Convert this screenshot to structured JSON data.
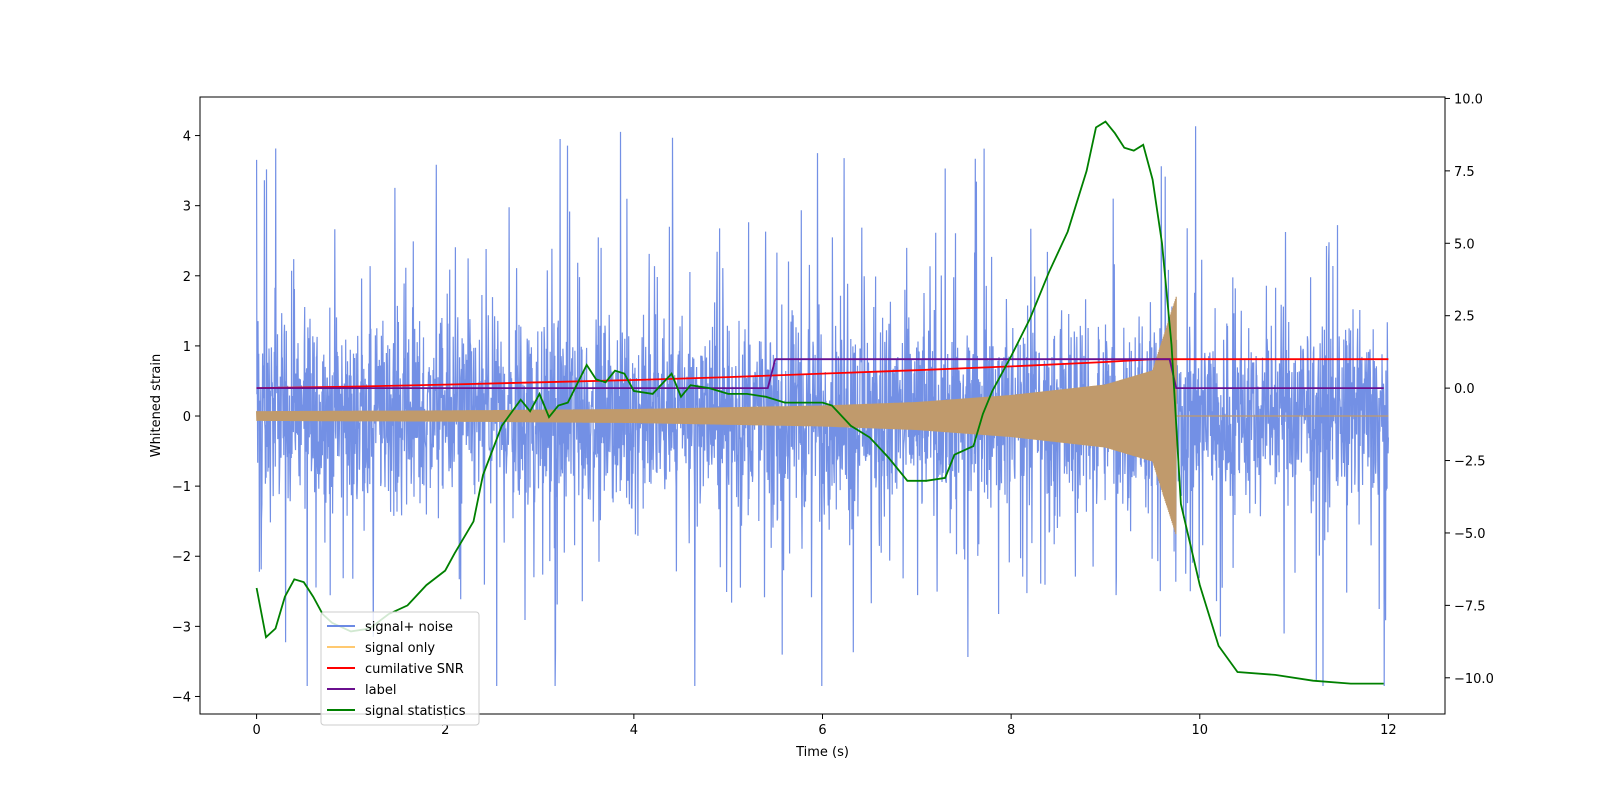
{
  "chart_data": {
    "type": "line",
    "title": "",
    "xlabel": "Time (s)",
    "ylabel": "Whitened strain",
    "y2label": "",
    "xlim": [
      -0.6,
      12.6
    ],
    "ylim": [
      -4.25,
      4.55
    ],
    "y2lim": [
      -11.25,
      10.05
    ],
    "x_ticks": [
      0,
      2,
      4,
      6,
      8,
      10,
      12
    ],
    "y_ticks": [
      -4,
      -3,
      -2,
      -1,
      0,
      1,
      2,
      3,
      4
    ],
    "y2_ticks": [
      -10.0,
      -7.5,
      -5.0,
      -2.5,
      0.0,
      2.5,
      5.0,
      7.5,
      10.0
    ],
    "grid": false,
    "legend_position": "lower-left",
    "legend": [
      {
        "label": "signal+ noise",
        "color": "#6c8ae4"
      },
      {
        "label": "signal only",
        "color": "#ffc970"
      },
      {
        "label": "cumilative SNR",
        "color": "#ff0000"
      },
      {
        "label": "label",
        "color": "#6a0f8e"
      },
      {
        "label": "signal statistics",
        "color": "#008000"
      }
    ],
    "series": [
      {
        "name": "signal+ noise",
        "axis": "left",
        "color": "#6c8ae4",
        "style": "noise",
        "x_range": [
          0,
          12
        ],
        "typical_peak": 2.3,
        "max_peak": 4.15,
        "min_peak": -3.85
      },
      {
        "name": "signal only",
        "axis": "left",
        "color": "#c09a6c",
        "style": "chirp",
        "x_range": [
          0,
          12
        ],
        "end_time": 9.75,
        "envelope": [
          [
            0,
            0.07
          ],
          [
            2,
            0.08
          ],
          [
            4,
            0.1
          ],
          [
            6,
            0.15
          ],
          [
            7,
            0.2
          ],
          [
            8,
            0.3
          ],
          [
            9,
            0.45
          ],
          [
            9.5,
            0.65
          ],
          [
            9.75,
            1.7
          ]
        ],
        "after_value": 0.0
      },
      {
        "name": "cumilative SNR",
        "axis": "right",
        "color": "#ff0000",
        "points": [
          [
            0,
            0.0
          ],
          [
            1,
            0.05
          ],
          [
            2,
            0.12
          ],
          [
            3,
            0.2
          ],
          [
            4,
            0.28
          ],
          [
            5,
            0.38
          ],
          [
            6,
            0.5
          ],
          [
            7,
            0.62
          ],
          [
            8,
            0.75
          ],
          [
            9,
            0.9
          ],
          [
            9.5,
            1.0
          ],
          [
            9.75,
            1.0
          ],
          [
            12,
            1.0
          ]
        ]
      },
      {
        "name": "label",
        "axis": "right",
        "color": "#6a0f8e",
        "points": [
          [
            0,
            0.0
          ],
          [
            5.42,
            0.0
          ],
          [
            5.5,
            1.0
          ],
          [
            9.68,
            1.0
          ],
          [
            9.75,
            0.0
          ],
          [
            11.95,
            0.0
          ]
        ]
      },
      {
        "name": "signal statistics",
        "axis": "right",
        "color": "#008000",
        "points": [
          [
            0,
            -6.9
          ],
          [
            0.1,
            -8.6
          ],
          [
            0.2,
            -8.3
          ],
          [
            0.3,
            -7.2
          ],
          [
            0.4,
            -6.6
          ],
          [
            0.5,
            -6.7
          ],
          [
            0.6,
            -7.2
          ],
          [
            0.7,
            -7.8
          ],
          [
            0.8,
            -8.1
          ],
          [
            1.0,
            -8.4
          ],
          [
            1.2,
            -8.3
          ],
          [
            1.4,
            -7.8
          ],
          [
            1.6,
            -7.5
          ],
          [
            1.8,
            -6.8
          ],
          [
            2.0,
            -6.3
          ],
          [
            2.1,
            -5.7
          ],
          [
            2.3,
            -4.6
          ],
          [
            2.4,
            -3.0
          ],
          [
            2.6,
            -1.3
          ],
          [
            2.8,
            -0.4
          ],
          [
            2.9,
            -0.8
          ],
          [
            3.0,
            -0.2
          ],
          [
            3.1,
            -1.0
          ],
          [
            3.2,
            -0.6
          ],
          [
            3.3,
            -0.5
          ],
          [
            3.5,
            0.8
          ],
          [
            3.6,
            0.3
          ],
          [
            3.7,
            0.2
          ],
          [
            3.8,
            0.6
          ],
          [
            3.9,
            0.5
          ],
          [
            4.0,
            -0.1
          ],
          [
            4.2,
            -0.2
          ],
          [
            4.4,
            0.5
          ],
          [
            4.5,
            -0.3
          ],
          [
            4.6,
            0.1
          ],
          [
            4.8,
            0.0
          ],
          [
            5.0,
            -0.2
          ],
          [
            5.2,
            -0.2
          ],
          [
            5.4,
            -0.3
          ],
          [
            5.6,
            -0.5
          ],
          [
            5.8,
            -0.5
          ],
          [
            6.0,
            -0.5
          ],
          [
            6.1,
            -0.6
          ],
          [
            6.3,
            -1.3
          ],
          [
            6.5,
            -1.7
          ],
          [
            6.7,
            -2.4
          ],
          [
            6.9,
            -3.2
          ],
          [
            7.1,
            -3.2
          ],
          [
            7.3,
            -3.1
          ],
          [
            7.4,
            -2.3
          ],
          [
            7.6,
            -2.0
          ],
          [
            7.7,
            -0.9
          ],
          [
            7.8,
            -0.1
          ],
          [
            8.0,
            1.1
          ],
          [
            8.2,
            2.4
          ],
          [
            8.4,
            4.0
          ],
          [
            8.6,
            5.4
          ],
          [
            8.8,
            7.5
          ],
          [
            8.9,
            9.0
          ],
          [
            9.0,
            9.2
          ],
          [
            9.1,
            8.8
          ],
          [
            9.2,
            8.3
          ],
          [
            9.3,
            8.2
          ],
          [
            9.4,
            8.4
          ],
          [
            9.5,
            7.2
          ],
          [
            9.6,
            5.0
          ],
          [
            9.7,
            1.5
          ],
          [
            9.8,
            -4.0
          ],
          [
            10.0,
            -6.8
          ],
          [
            10.2,
            -8.9
          ],
          [
            10.4,
            -9.8
          ],
          [
            10.8,
            -9.9
          ],
          [
            11.2,
            -10.1
          ],
          [
            11.6,
            -10.2
          ],
          [
            11.95,
            -10.2
          ]
        ]
      }
    ]
  }
}
